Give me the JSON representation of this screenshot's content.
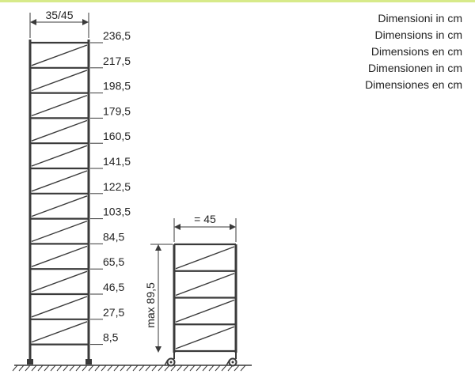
{
  "colors": {
    "accent": "#d7ea8a",
    "line": "#3a3a3a",
    "text": "#222222"
  },
  "captions": [
    "Dimensioni in cm",
    "Dimensions in cm",
    "Dimensions en cm",
    "Dimensionen in cm",
    "Dimensiones en cm"
  ],
  "tall_unit": {
    "width_label": "35/45",
    "heights": [
      "236,5",
      "217,5",
      "198,5",
      "179,5",
      "160,5",
      "141,5",
      "122,5",
      "103,5",
      "84,5",
      "65,5",
      "46,5",
      "27,5",
      "8,5"
    ]
  },
  "short_unit": {
    "width_label": "= 45",
    "max_label": "max 89,5",
    "levels": 5
  }
}
